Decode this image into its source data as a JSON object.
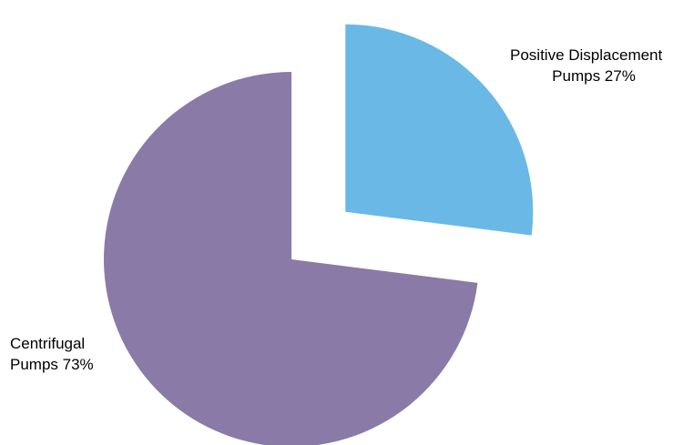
{
  "chart_data": {
    "type": "pie",
    "title": "",
    "slices": [
      {
        "label_lines": [
          "Positive Displacement",
          "Pumps 27%"
        ],
        "category": "Positive Displacement Pumps",
        "value": 27,
        "color": "#6ab8e6",
        "exploded": true
      },
      {
        "label_lines": [
          "Centrifugal",
          "Pumps 73%"
        ],
        "category": "Centrifugal Pumps",
        "value": 73,
        "color": "#8a7aa8",
        "exploded": false
      }
    ],
    "start_angle": "12 o'clock",
    "direction": "clockwise",
    "legend": "none"
  }
}
